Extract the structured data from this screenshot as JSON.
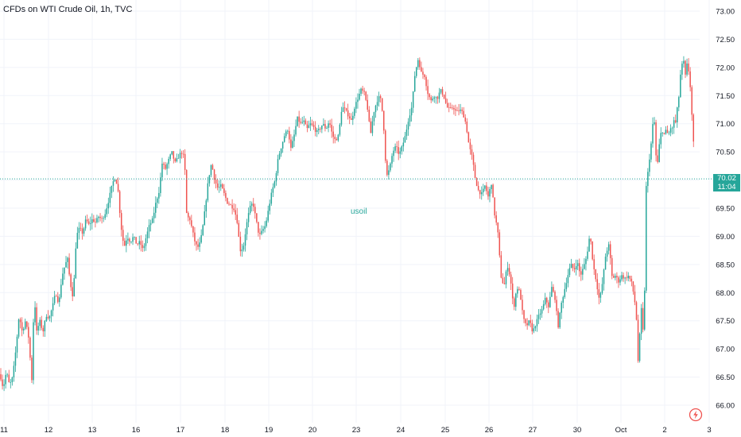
{
  "chart_title": "CFDs on WTI Crude Oil, 1h, TVC",
  "watermark": "usoil",
  "last_price": "70.02",
  "countdown": "11:04",
  "colors": {
    "up": "#26a69a",
    "down": "#ef5350",
    "grid": "#f0f3fa",
    "text": "#131722"
  },
  "logo_icon": "tradingview-logo-icon",
  "chart_data": {
    "type": "candlestick",
    "y_axis": {
      "ticks": [
        "73.00",
        "72.50",
        "72.00",
        "71.50",
        "71.00",
        "70.50",
        "70.00",
        "69.50",
        "69.00",
        "68.50",
        "68.00",
        "67.50",
        "67.00",
        "66.50",
        "66.00"
      ],
      "ylim": [
        65.88,
        73.15
      ],
      "position": "right"
    },
    "x_axis": {
      "ticks": [
        "11",
        "12",
        "13",
        "16",
        "17",
        "18",
        "19",
        "20",
        "23",
        "24",
        "25",
        "26",
        "27",
        "30",
        "Oct",
        "2",
        "3"
      ]
    },
    "grid": true,
    "current_price_line": 70.02,
    "series_points": [
      [
        0,
        66.55
      ],
      [
        4,
        66.3
      ],
      [
        8,
        66.6
      ],
      [
        12,
        66.35
      ],
      [
        16,
        66.5
      ],
      [
        20,
        67.0
      ],
      [
        24,
        67.6
      ],
      [
        28,
        67.3
      ],
      [
        32,
        67.5
      ],
      [
        36,
        67.2
      ],
      [
        40,
        66.45
      ],
      [
        43,
        68.0
      ],
      [
        46,
        67.3
      ],
      [
        50,
        67.5
      ],
      [
        54,
        67.3
      ],
      [
        58,
        67.6
      ],
      [
        62,
        67.55
      ],
      [
        66,
        67.75
      ],
      [
        70,
        68.0
      ],
      [
        74,
        67.8
      ],
      [
        78,
        68.3
      ],
      [
        82,
        68.5
      ],
      [
        85,
        68.6
      ],
      [
        88,
        68.2
      ],
      [
        92,
        67.9
      ],
      [
        96,
        69.0
      ],
      [
        100,
        69.15
      ],
      [
        104,
        69.05
      ],
      [
        108,
        69.3
      ],
      [
        112,
        69.2
      ],
      [
        116,
        69.3
      ],
      [
        120,
        69.25
      ],
      [
        124,
        69.35
      ],
      [
        128,
        69.3
      ],
      [
        132,
        69.4
      ],
      [
        136,
        69.6
      ],
      [
        140,
        69.85
      ],
      [
        144,
        70.05
      ],
      [
        148,
        69.9
      ],
      [
        152,
        69.2
      ],
      [
        156,
        68.8
      ],
      [
        160,
        69.0
      ],
      [
        164,
        68.9
      ],
      [
        168,
        69.0
      ],
      [
        172,
        68.85
      ],
      [
        176,
        68.9
      ],
      [
        180,
        68.75
      ],
      [
        184,
        69.0
      ],
      [
        188,
        69.2
      ],
      [
        192,
        69.3
      ],
      [
        196,
        69.6
      ],
      [
        200,
        69.8
      ],
      [
        204,
        70.3
      ],
      [
        208,
        70.2
      ],
      [
        212,
        70.35
      ],
      [
        216,
        70.5
      ],
      [
        220,
        70.3
      ],
      [
        224,
        70.4
      ],
      [
        228,
        70.5
      ],
      [
        232,
        70.4
      ],
      [
        235,
        69.3
      ],
      [
        238,
        69.35
      ],
      [
        242,
        69.1
      ],
      [
        246,
        68.85
      ],
      [
        250,
        68.8
      ],
      [
        254,
        69.05
      ],
      [
        258,
        69.5
      ],
      [
        262,
        70.0
      ],
      [
        266,
        70.3
      ],
      [
        270,
        70.0
      ],
      [
        274,
        69.85
      ],
      [
        278,
        69.9
      ],
      [
        282,
        69.75
      ],
      [
        286,
        69.6
      ],
      [
        290,
        69.55
      ],
      [
        294,
        69.5
      ],
      [
        298,
        69.3
      ],
      [
        302,
        68.75
      ],
      [
        306,
        68.8
      ],
      [
        310,
        69.2
      ],
      [
        314,
        69.5
      ],
      [
        318,
        69.6
      ],
      [
        322,
        69.3
      ],
      [
        326,
        69.0
      ],
      [
        330,
        69.1
      ],
      [
        334,
        69.2
      ],
      [
        338,
        69.5
      ],
      [
        342,
        69.8
      ],
      [
        346,
        70.0
      ],
      [
        350,
        70.4
      ],
      [
        354,
        70.6
      ],
      [
        358,
        70.8
      ],
      [
        362,
        70.9
      ],
      [
        366,
        70.55
      ],
      [
        370,
        70.8
      ],
      [
        374,
        71.1
      ],
      [
        378,
        71.0
      ],
      [
        382,
        71.05
      ],
      [
        386,
        70.9
      ],
      [
        390,
        71.0
      ],
      [
        394,
        70.95
      ],
      [
        398,
        70.85
      ],
      [
        402,
        70.9
      ],
      [
        406,
        71.0
      ],
      [
        410,
        70.9
      ],
      [
        414,
        71.05
      ],
      [
        418,
        70.8
      ],
      [
        422,
        70.7
      ],
      [
        426,
        70.8
      ],
      [
        430,
        71.3
      ],
      [
        434,
        71.25
      ],
      [
        438,
        71.15
      ],
      [
        442,
        71.05
      ],
      [
        446,
        71.3
      ],
      [
        450,
        71.45
      ],
      [
        454,
        71.6
      ],
      [
        458,
        71.55
      ],
      [
        462,
        71.3
      ],
      [
        466,
        70.8
      ],
      [
        470,
        71.2
      ],
      [
        474,
        71.4
      ],
      [
        478,
        71.5
      ],
      [
        482,
        71.1
      ],
      [
        486,
        70.05
      ],
      [
        490,
        70.2
      ],
      [
        494,
        70.5
      ],
      [
        498,
        70.6
      ],
      [
        502,
        70.45
      ],
      [
        506,
        70.6
      ],
      [
        510,
        70.8
      ],
      [
        514,
        71.1
      ],
      [
        518,
        71.3
      ],
      [
        522,
        71.9
      ],
      [
        526,
        72.15
      ],
      [
        530,
        71.9
      ],
      [
        534,
        71.85
      ],
      [
        538,
        71.55
      ],
      [
        542,
        71.4
      ],
      [
        546,
        71.5
      ],
      [
        550,
        71.45
      ],
      [
        554,
        71.6
      ],
      [
        558,
        71.5
      ],
      [
        562,
        71.3
      ],
      [
        566,
        71.25
      ],
      [
        570,
        71.3
      ],
      [
        574,
        71.2
      ],
      [
        578,
        71.25
      ],
      [
        582,
        71.2
      ],
      [
        586,
        71.0
      ],
      [
        590,
        70.6
      ],
      [
        594,
        70.4
      ],
      [
        598,
        70.0
      ],
      [
        602,
        69.8
      ],
      [
        606,
        69.75
      ],
      [
        610,
        69.9
      ],
      [
        614,
        69.7
      ],
      [
        618,
        69.95
      ],
      [
        622,
        69.4
      ],
      [
        626,
        69.1
      ],
      [
        630,
        68.3
      ],
      [
        634,
        68.1
      ],
      [
        638,
        68.5
      ],
      [
        642,
        68.25
      ],
      [
        646,
        67.7
      ],
      [
        650,
        68.1
      ],
      [
        654,
        68.0
      ],
      [
        658,
        67.55
      ],
      [
        662,
        67.4
      ],
      [
        666,
        67.5
      ],
      [
        670,
        67.3
      ],
      [
        674,
        67.45
      ],
      [
        678,
        67.6
      ],
      [
        682,
        67.7
      ],
      [
        686,
        67.9
      ],
      [
        690,
        67.75
      ],
      [
        694,
        68.1
      ],
      [
        698,
        67.9
      ],
      [
        702,
        67.4
      ],
      [
        706,
        67.8
      ],
      [
        710,
        68.05
      ],
      [
        714,
        68.3
      ],
      [
        718,
        68.5
      ],
      [
        722,
        68.4
      ],
      [
        726,
        68.55
      ],
      [
        730,
        68.3
      ],
      [
        734,
        68.45
      ],
      [
        738,
        68.65
      ],
      [
        742,
        69.05
      ],
      [
        746,
        68.5
      ],
      [
        750,
        68.2
      ],
      [
        754,
        67.85
      ],
      [
        758,
        68.2
      ],
      [
        762,
        68.7
      ],
      [
        766,
        68.85
      ],
      [
        770,
        68.25
      ],
      [
        774,
        68.3
      ],
      [
        778,
        68.2
      ],
      [
        782,
        68.3
      ],
      [
        786,
        68.25
      ],
      [
        790,
        68.3
      ],
      [
        794,
        68.2
      ],
      [
        798,
        67.9
      ],
      [
        801,
        67.45
      ],
      [
        803,
        66.6
      ],
      [
        806,
        67.8
      ],
      [
        808,
        67.5
      ],
      [
        810,
        67.0
      ],
      [
        812,
        69.8
      ],
      [
        814,
        70.0
      ],
      [
        816,
        70.3
      ],
      [
        818,
        70.5
      ],
      [
        820,
        70.8
      ],
      [
        822,
        71.15
      ],
      [
        824,
        70.9
      ],
      [
        826,
        70.05
      ],
      [
        828,
        70.5
      ],
      [
        830,
        70.7
      ],
      [
        832,
        70.9
      ],
      [
        834,
        70.85
      ],
      [
        836,
        70.8
      ],
      [
        838,
        70.9
      ],
      [
        840,
        70.8
      ],
      [
        842,
        70.85
      ],
      [
        844,
        70.95
      ],
      [
        846,
        70.9
      ],
      [
        848,
        71.1
      ],
      [
        850,
        71.0
      ],
      [
        852,
        71.3
      ],
      [
        854,
        71.5
      ],
      [
        856,
        71.9
      ],
      [
        858,
        72.05
      ],
      [
        860,
        72.1
      ],
      [
        862,
        71.85
      ],
      [
        864,
        72.05
      ],
      [
        866,
        71.95
      ],
      [
        868,
        71.7
      ],
      [
        870,
        71.2
      ],
      [
        872,
        70.75
      ],
      [
        874,
        70.0
      ]
    ]
  }
}
